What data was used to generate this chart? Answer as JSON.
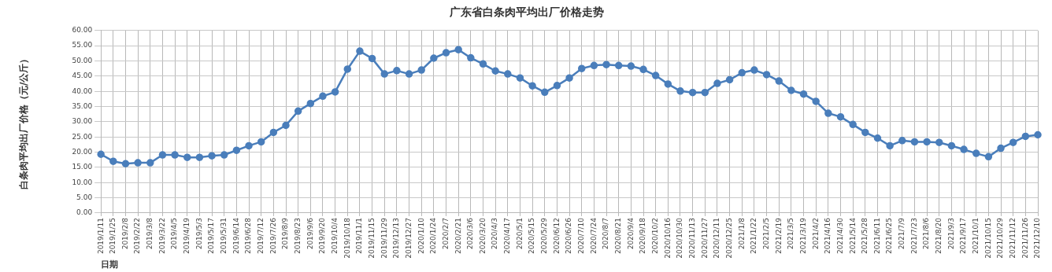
{
  "chart_data": {
    "type": "line",
    "title": "广东省白条肉平均出厂价格走势",
    "xlabel": "日期",
    "ylabel": "白条肉平均出厂价格（元/公斤）",
    "categories": [
      "2019/1/11",
      "2019/1/25",
      "2019/2/8",
      "2019/2/22",
      "2019/3/8",
      "2019/3/22",
      "2019/4/5",
      "2019/4/19",
      "2019/5/3",
      "2019/5/17",
      "2019/5/31",
      "2019/6/14",
      "2019/6/28",
      "2019/7/12",
      "2019/7/26",
      "2019/8/9",
      "2019/8/23",
      "2019/9/6",
      "2019/9/20",
      "2019/10/4",
      "2019/10/18",
      "2019/11/1",
      "2019/11/15",
      "2019/11/29",
      "2019/12/13",
      "2019/12/27",
      "2020/1/10",
      "2020/1/24",
      "2020/2/7",
      "2020/2/21",
      "2020/3/6",
      "2020/3/20",
      "2020/4/3",
      "2020/4/17",
      "2020/5/1",
      "2020/5/15",
      "2020/5/29",
      "2020/6/12",
      "2020/6/26",
      "2020/7/10",
      "2020/7/24",
      "2020/8/7",
      "2020/8/21",
      "2020/9/4",
      "2020/9/18",
      "2020/10/2",
      "2020/10/16",
      "2020/10/30",
      "2020/11/13",
      "2020/11/27",
      "2020/12/11",
      "2020/12/25",
      "2021/1/8",
      "2021/1/22",
      "2021/2/5",
      "2021/2/19",
      "2021/3/5",
      "2021/3/19",
      "2021/4/2",
      "2021/4/16",
      "2021/4/30",
      "2021/5/14",
      "2021/5/28",
      "2021/6/11",
      "2021/6/25",
      "2021/7/9",
      "2021/7/23",
      "2021/8/6",
      "2021/8/20",
      "2021/9/3",
      "2021/9/17",
      "2021/10/1",
      "2021/10/15",
      "2021/10/29",
      "2021/11/12",
      "2021/11/26",
      "2021/12/10"
    ],
    "series": [
      {
        "color": "#4a7ebb",
        "values": [
          19.3,
          17.0,
          16.2,
          16.5,
          16.5,
          19.1,
          19.1,
          18.3,
          18.3,
          18.8,
          19.1,
          20.6,
          22.1,
          23.4,
          26.5,
          28.8,
          33.5,
          36.0,
          38.4,
          39.8,
          47.3,
          53.2,
          50.8,
          45.7,
          46.8,
          45.7,
          47.0,
          50.9,
          52.7,
          53.7,
          51.0,
          49.0,
          46.7,
          45.7,
          44.4,
          41.8,
          39.7,
          41.9,
          44.4,
          47.5,
          48.5,
          48.8,
          48.5,
          48.3,
          47.2,
          45.2,
          42.4,
          40.1,
          39.6,
          39.6,
          42.6,
          43.8,
          46.1,
          47.0,
          45.5,
          43.4,
          40.3,
          39.1,
          36.7,
          32.8,
          31.6,
          29.1,
          26.5,
          24.6,
          22.1,
          23.8,
          23.4,
          23.4,
          23.2,
          22.1,
          20.9,
          19.6,
          18.5,
          21.3,
          23.2,
          25.2,
          25.7
        ]
      }
    ],
    "ylim": [
      0,
      60
    ],
    "yticks": [
      {
        "value": 0,
        "label": "0.00"
      },
      {
        "value": 5,
        "label": "5.00"
      },
      {
        "value": 10,
        "label": "10.00"
      },
      {
        "value": 15,
        "label": "15.00"
      },
      {
        "value": 20,
        "label": "20.00"
      },
      {
        "value": 25,
        "label": "25.00"
      },
      {
        "value": 30,
        "label": "30.00"
      },
      {
        "value": 35,
        "label": "35.00"
      },
      {
        "value": 40,
        "label": "40.00"
      },
      {
        "value": 45,
        "label": "45.00"
      },
      {
        "value": 50,
        "label": "50.00"
      },
      {
        "value": 55,
        "label": "55.00"
      },
      {
        "value": 60,
        "label": "60.00"
      }
    ],
    "grid": true,
    "legend": false,
    "marker": "circle",
    "line_style": "solid"
  }
}
